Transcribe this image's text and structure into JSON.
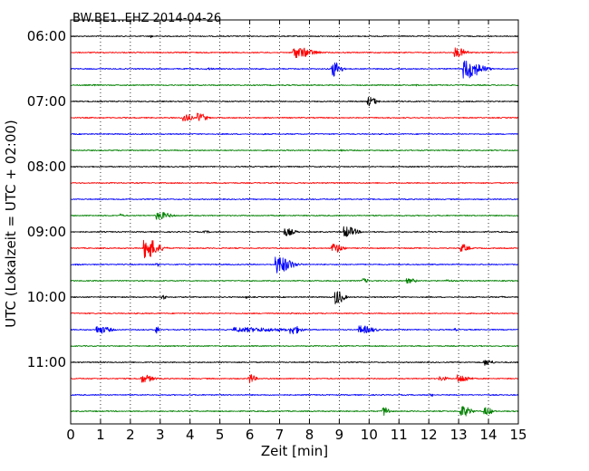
{
  "chart_data": {
    "type": "line",
    "title": "BW.BE1..EHZ 2014-04-26",
    "xlabel": "Zeit  [min]",
    "ylabel": "UTC (Lokalzeit = UTC + 02:00)",
    "xlim": [
      0,
      15
    ],
    "x_ticks": [
      "0",
      "1",
      "2",
      "3",
      "4",
      "5",
      "6",
      "7",
      "8",
      "9",
      "10",
      "11",
      "12",
      "13",
      "14",
      "15"
    ],
    "y_tick_labels": [
      "06:00",
      "07:00",
      "08:00",
      "09:00",
      "10:00",
      "11:00"
    ],
    "rows_per_hour": 4,
    "minutes_per_row": 15,
    "grid": "vertical dotted at each minute",
    "colors": [
      "#000000",
      "#ff0000",
      "#0000ff",
      "#008000"
    ],
    "rows": [
      {
        "start": "06:00",
        "color": "#000000",
        "events": [
          {
            "t": 2.7,
            "amp": 0.2,
            "dur": 0.1
          }
        ]
      },
      {
        "start": "06:15",
        "color": "#ff0000",
        "events": [
          {
            "t": 7.5,
            "amp": 0.7,
            "dur": 1.0
          },
          {
            "t": 12.9,
            "amp": 0.6,
            "dur": 0.6
          }
        ]
      },
      {
        "start": "06:30",
        "color": "#0000ff",
        "events": [
          {
            "t": 8.8,
            "amp": 1.0,
            "dur": 0.4
          },
          {
            "t": 13.2,
            "amp": 1.2,
            "dur": 0.9
          },
          {
            "t": 4.6,
            "amp": 0.15,
            "dur": 0.4
          }
        ]
      },
      {
        "start": "06:45",
        "color": "#008000",
        "events": [
          {
            "t": 0.8,
            "amp": 0.12,
            "dur": 0.1
          },
          {
            "t": 11.6,
            "amp": 0.15,
            "dur": 0.1
          }
        ]
      },
      {
        "start": "07:00",
        "color": "#000000",
        "events": [
          {
            "t": 10.0,
            "amp": 0.6,
            "dur": 0.4
          }
        ]
      },
      {
        "start": "07:15",
        "color": "#ff0000",
        "events": [
          {
            "t": 3.8,
            "amp": 0.6,
            "dur": 0.4
          },
          {
            "t": 4.3,
            "amp": 0.6,
            "dur": 0.4
          }
        ]
      },
      {
        "start": "07:30",
        "color": "#0000ff",
        "events": [
          {
            "t": 6.5,
            "amp": 0.1,
            "dur": 0.2
          }
        ]
      },
      {
        "start": "07:45",
        "color": "#008000",
        "events": [
          {
            "t": 9.1,
            "amp": 0.18,
            "dur": 0.1
          }
        ]
      },
      {
        "start": "08:00",
        "color": "#000000",
        "events": []
      },
      {
        "start": "08:15",
        "color": "#ff0000",
        "events": []
      },
      {
        "start": "08:30",
        "color": "#0000ff",
        "events": []
      },
      {
        "start": "08:45",
        "color": "#008000",
        "events": [
          {
            "t": 1.7,
            "amp": 0.3,
            "dur": 0.1
          },
          {
            "t": 2.9,
            "amp": 0.5,
            "dur": 0.7
          }
        ]
      },
      {
        "start": "09:00",
        "color": "#000000",
        "events": [
          {
            "t": 7.2,
            "amp": 0.5,
            "dur": 0.5
          },
          {
            "t": 9.2,
            "amp": 0.7,
            "dur": 0.6
          },
          {
            "t": 4.5,
            "amp": 0.15,
            "dur": 0.4
          }
        ]
      },
      {
        "start": "09:15",
        "color": "#ff0000",
        "events": [
          {
            "t": 2.5,
            "amp": 1.3,
            "dur": 0.7
          },
          {
            "t": 8.8,
            "amp": 0.6,
            "dur": 0.5
          },
          {
            "t": 13.1,
            "amp": 0.5,
            "dur": 0.4
          }
        ]
      },
      {
        "start": "09:30",
        "color": "#0000ff",
        "events": [
          {
            "t": 6.9,
            "amp": 1.1,
            "dur": 0.8
          },
          {
            "t": 2.9,
            "amp": 0.3,
            "dur": 0.1
          },
          {
            "t": 0.2,
            "amp": 0.1,
            "dur": 0.4
          }
        ]
      },
      {
        "start": "09:45",
        "color": "#008000",
        "events": [
          {
            "t": 9.8,
            "amp": 0.3,
            "dur": 0.3
          },
          {
            "t": 11.3,
            "amp": 0.3,
            "dur": 0.5
          },
          {
            "t": 12.6,
            "amp": 0.15,
            "dur": 0.6
          }
        ]
      },
      {
        "start": "10:00",
        "color": "#000000",
        "events": [
          {
            "t": 3.1,
            "amp": 0.3,
            "dur": 0.2
          },
          {
            "t": 8.9,
            "amp": 0.9,
            "dur": 0.4
          },
          {
            "t": 5.9,
            "amp": 0.2,
            "dur": 0.1
          },
          {
            "t": 14.5,
            "amp": 0.2,
            "dur": 0.1
          }
        ]
      },
      {
        "start": "10:15",
        "color": "#ff0000",
        "events": [
          {
            "t": 7.4,
            "amp": 0.1,
            "dur": 0.2
          }
        ]
      },
      {
        "start": "10:30",
        "color": "#0000ff",
        "events": [
          {
            "t": 0.9,
            "amp": 0.5,
            "dur": 0.7
          },
          {
            "t": 2.9,
            "amp": 0.6,
            "dur": 0.1
          },
          {
            "t": 7.4,
            "amp": 0.6,
            "dur": 0.5
          },
          {
            "t": 9.7,
            "amp": 0.5,
            "dur": 0.8
          },
          {
            "t": 5.5,
            "amp": 0.3,
            "dur": 3.0
          },
          {
            "t": 12.9,
            "amp": 0.2,
            "dur": 0.1
          }
        ]
      },
      {
        "start": "10:45",
        "color": "#008000",
        "events": []
      },
      {
        "start": "11:00",
        "color": "#000000",
        "events": [
          {
            "t": 13.9,
            "amp": 0.4,
            "dur": 0.4
          }
        ]
      },
      {
        "start": "11:15",
        "color": "#ff0000",
        "events": [
          {
            "t": 2.4,
            "amp": 0.5,
            "dur": 0.6
          },
          {
            "t": 6.0,
            "amp": 0.6,
            "dur": 0.3
          },
          {
            "t": 13.0,
            "amp": 0.5,
            "dur": 0.6
          },
          {
            "t": 12.4,
            "amp": 0.3,
            "dur": 0.4
          }
        ]
      },
      {
        "start": "11:30",
        "color": "#0000ff",
        "events": [
          {
            "t": 12.1,
            "amp": 0.2,
            "dur": 0.1
          }
        ]
      },
      {
        "start": "11:45",
        "color": "#008000",
        "events": [
          {
            "t": 10.5,
            "amp": 0.6,
            "dur": 0.3
          },
          {
            "t": 13.1,
            "amp": 0.7,
            "dur": 0.5
          },
          {
            "t": 13.9,
            "amp": 0.5,
            "dur": 0.4
          }
        ]
      }
    ]
  }
}
